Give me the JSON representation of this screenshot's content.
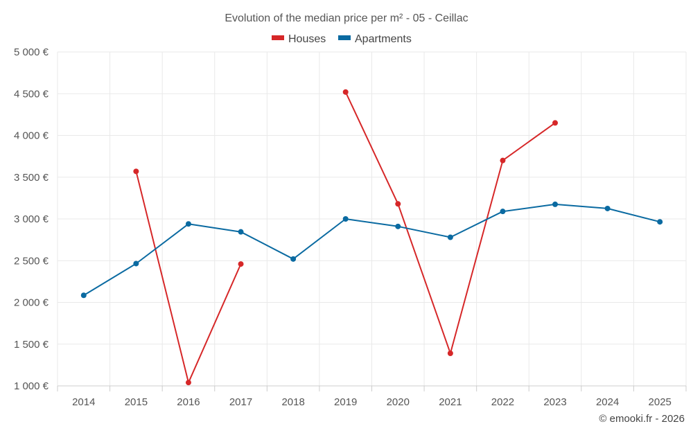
{
  "chart_data": {
    "type": "line",
    "title": "Evolution of the median price per m² - 05 - Ceillac",
    "categories": [
      "2014",
      "2015",
      "2016",
      "2017",
      "2018",
      "2019",
      "2020",
      "2021",
      "2022",
      "2023",
      "2024",
      "2025"
    ],
    "y_ticks": [
      "1 000 €",
      "1 500 €",
      "2 000 €",
      "2 500 €",
      "3 000 €",
      "3 500 €",
      "4 000 €",
      "4 500 €",
      "5 000 €"
    ],
    "ylim": [
      1000,
      5000
    ],
    "y_step": 500,
    "grid": true,
    "legend_position": "top-center",
    "series": [
      {
        "name": "Houses",
        "color": "#d62728",
        "values": [
          null,
          3570,
          1040,
          2460,
          null,
          4520,
          3180,
          1390,
          3700,
          4150,
          null,
          null
        ]
      },
      {
        "name": "Apartments",
        "color": "#0a6aa1",
        "values": [
          2085,
          2465,
          2940,
          2845,
          2520,
          3000,
          2910,
          2780,
          3090,
          3175,
          3125,
          2965
        ]
      }
    ],
    "credit": "© emooki.fr - 2026"
  }
}
